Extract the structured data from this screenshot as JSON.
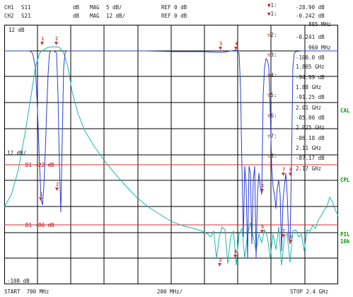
{
  "header": {
    "ch1": {
      "name": "CH1",
      "param": "S11",
      "format": "dB",
      "mag_label": "MAG",
      "scale": "5 dB/",
      "ref": "REF 0 dB"
    },
    "ch2": {
      "name": "CH2",
      "param": "S21",
      "format": "dB",
      "mag_label": "MAG",
      "scale": "12 dB/",
      "ref": "REF 0 dB"
    }
  },
  "axis": {
    "top_label": "12 dB",
    "mid_label": "12 dB/",
    "bottom_label": "-108 dB",
    "limit1": "D1 -22 dB",
    "limit2": "D1 -80 dB",
    "start": "START  700 MHz",
    "span": "200 MHz/",
    "stop": "STOP 2.4 GHz"
  },
  "markers": [
    {
      "id": "1",
      "value": "-28.90 dB"
    },
    {
      "id": "1",
      "value": "-0.242 dB"
    },
    {
      "freq": "885 MHz"
    },
    {
      "id": "2",
      "value": "-0.241 dB"
    },
    {
      "freq": "960 MHz"
    },
    {
      "id": "3",
      "value": "-100.0 dB"
    },
    {
      "freq": "1.805 GHz"
    },
    {
      "id": "4",
      "value": "-94.99 dB"
    },
    {
      "freq": "1.88 GHz"
    },
    {
      "id": "5",
      "value": "-91.25 dB"
    },
    {
      "freq": "2.01 GHz"
    },
    {
      "id": "6",
      "value": "-85.00 dB"
    },
    {
      "freq": "2.025 GHz"
    },
    {
      "id": "7",
      "value": "-86.18 dB"
    },
    {
      "freq": "2.11 GHz"
    },
    {
      "id": "8",
      "value": "-87.17 dB"
    },
    {
      "freq": "2.17 GHz"
    }
  ],
  "side": {
    "cal": "CAL",
    "cpl": "CPL",
    "pil": "PIL",
    "pil2": "10k"
  },
  "colors": {
    "ch1": "#2b3fd6",
    "ch2": "#19b8b0",
    "limit": "#c33",
    "grid": "#000"
  }
}
